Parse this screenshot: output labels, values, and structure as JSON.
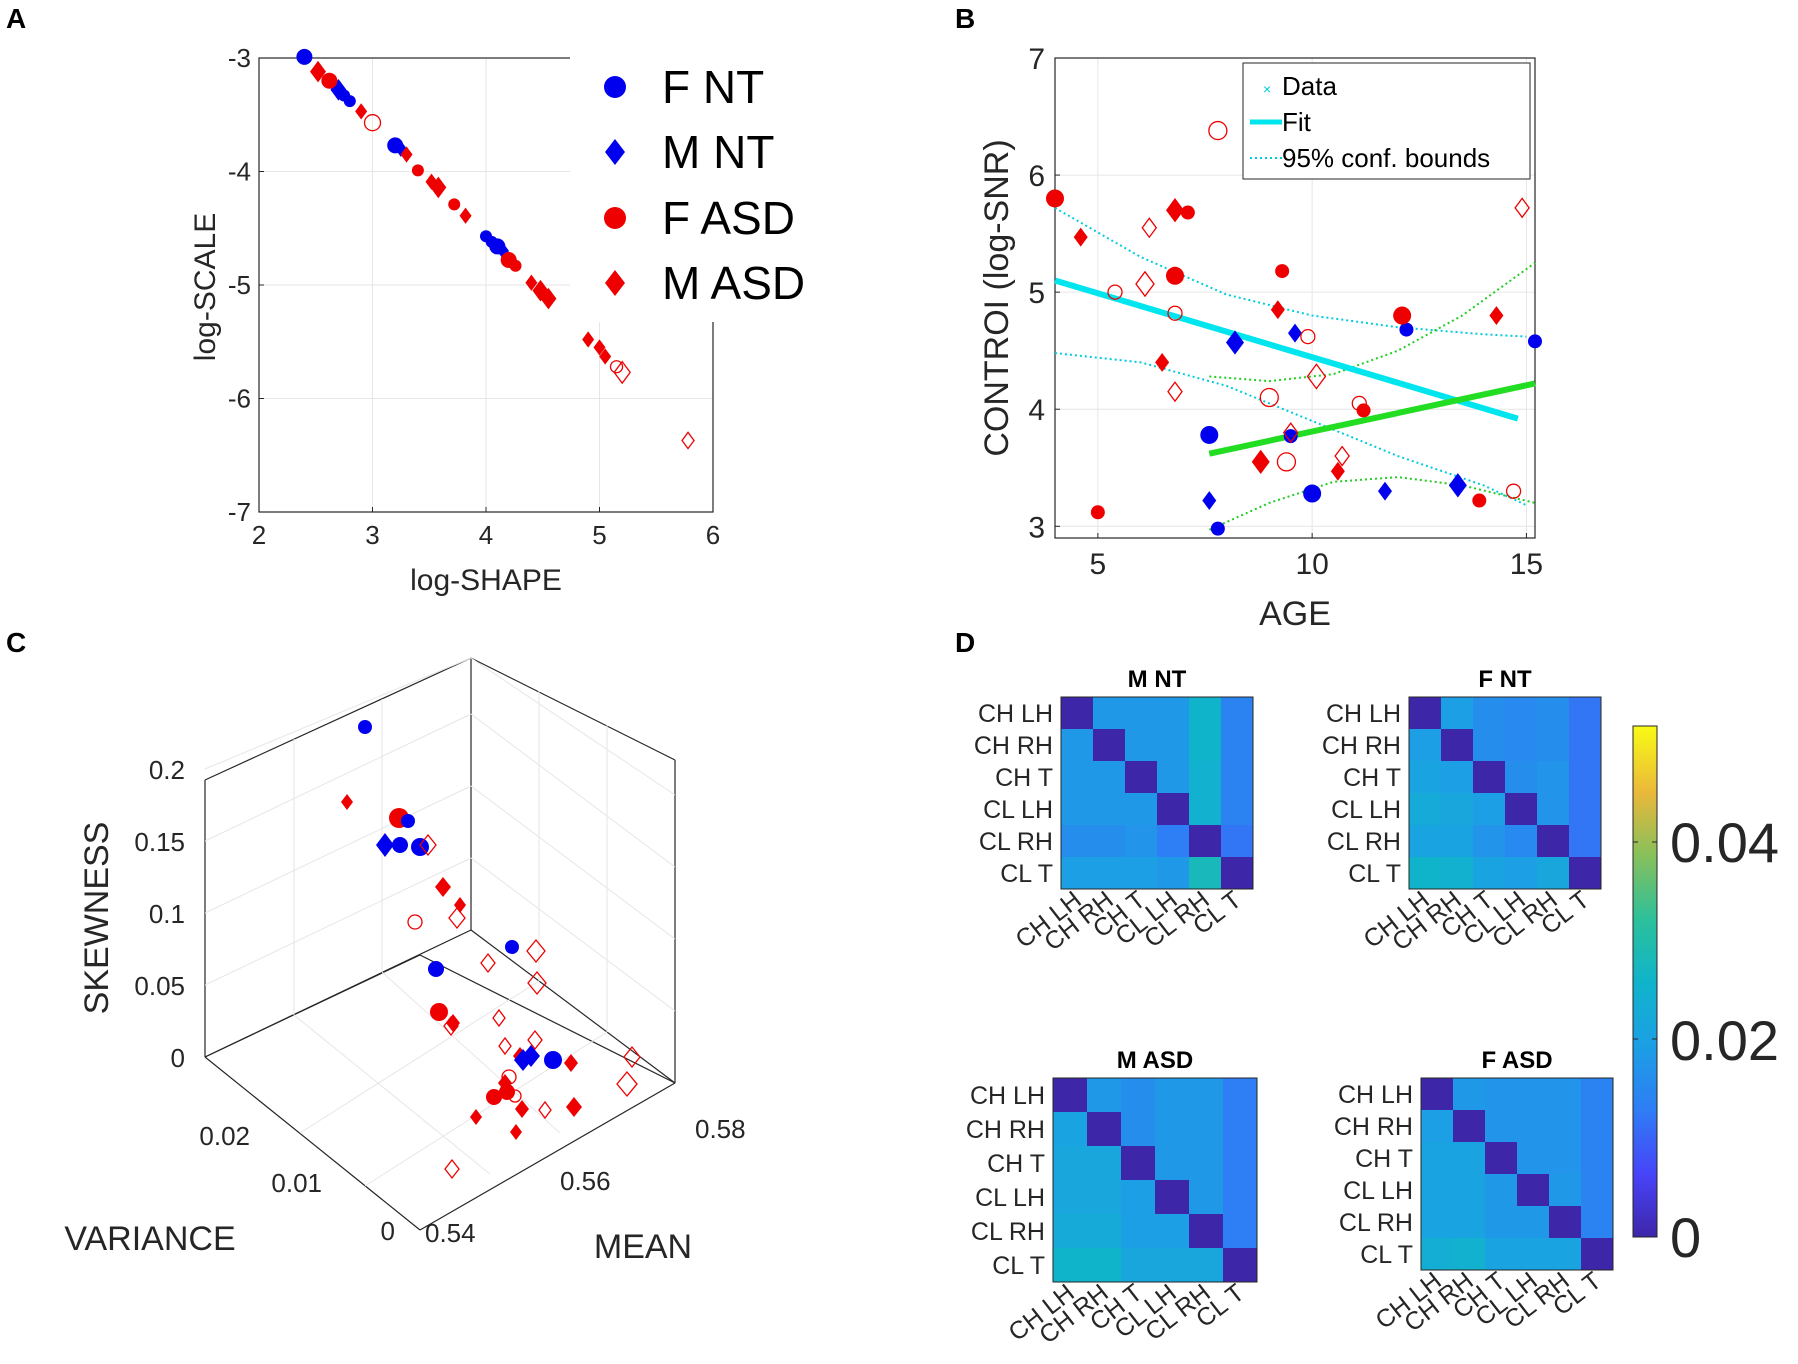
{
  "chart_data": [
    {
      "id": "A",
      "panel_label": "A",
      "type": "scatter",
      "xlabel": "log-SHAPE",
      "ylabel": "log-SCALE",
      "xlim": [
        2,
        6
      ],
      "ylim": [
        -7,
        -3
      ],
      "xticks": [
        "2",
        "3",
        "4",
        "5",
        "6"
      ],
      "yticks": [
        "-7",
        "-6",
        "-5",
        "-4",
        "-3"
      ],
      "grid": true,
      "legend_position": "top-right",
      "legend": [
        "F NT",
        "M NT",
        "F ASD",
        "M ASD"
      ],
      "colors": {
        "NT": "#0000ee",
        "ASD": "#ee0000"
      },
      "series": [
        {
          "name": "F NT",
          "points": [
            [
              2.4,
              -2.99
            ],
            [
              2.75,
              -3.33
            ],
            [
              2.8,
              -3.38
            ],
            [
              3.2,
              -3.77
            ],
            [
              4.0,
              -4.57
            ],
            [
              4.05,
              -4.62
            ],
            [
              4.1,
              -4.66
            ]
          ]
        },
        {
          "name": "M NT",
          "points": [
            [
              2.7,
              -3.28
            ],
            [
              3.25,
              -3.8
            ],
            [
              4.15,
              -4.7
            ]
          ]
        },
        {
          "name": "F ASD",
          "points": [
            [
              2.62,
              -3.2
            ],
            [
              3.4,
              -3.99
            ],
            [
              3.72,
              -4.29
            ],
            [
              4.2,
              -4.78
            ],
            [
              4.26,
              -4.83
            ],
            [
              5.15,
              -5.72
            ],
            [
              3.0,
              -3.57
            ]
          ]
        },
        {
          "name": "M ASD",
          "points": [
            [
              2.52,
              -3.12
            ],
            [
              2.9,
              -3.47
            ],
            [
              3.52,
              -4.09
            ],
            [
              3.58,
              -4.14
            ],
            [
              3.82,
              -4.39
            ],
            [
              4.4,
              -4.98
            ],
            [
              4.55,
              -5.12
            ],
            [
              4.9,
              -5.48
            ],
            [
              5.05,
              -5.63
            ],
            [
              5.2,
              -5.77
            ],
            [
              5.78,
              -6.37
            ],
            [
              3.3,
              -3.85
            ],
            [
              4.48,
              -5.05
            ],
            [
              5.0,
              -5.55
            ]
          ]
        }
      ]
    },
    {
      "id": "B",
      "panel_label": "B",
      "type": "scatter",
      "xlabel": "AGE",
      "ylabel": "CONTROI (log-SNR)",
      "xlim": [
        4,
        15.2
      ],
      "ylim": [
        2.9,
        7
      ],
      "xticks": [
        "5",
        "10",
        "15"
      ],
      "yticks": [
        "3",
        "4",
        "5",
        "6",
        "7"
      ],
      "grid": true,
      "legend_position": "top-right",
      "legend": [
        "Data",
        "Fit",
        "95% conf. bounds"
      ],
      "fit_lines": [
        {
          "name": "Fit (NT)",
          "color": "#00e5ee",
          "x": [
            4,
            14.8
          ],
          "y": [
            5.1,
            3.92
          ]
        },
        {
          "name": "Fit (ASD)",
          "color": "#22dd22",
          "x": [
            7.6,
            15.2
          ],
          "y": [
            3.62,
            4.22
          ]
        }
      ],
      "conf_bounds": [
        {
          "color": "#00ccdd",
          "x": [
            4,
            6,
            8,
            10,
            12,
            14,
            15
          ],
          "y": [
            5.72,
            5.3,
            4.98,
            4.8,
            4.7,
            4.64,
            4.62
          ]
        },
        {
          "color": "#00ccdd",
          "x": [
            4,
            6,
            8,
            10,
            12,
            14,
            15
          ],
          "y": [
            4.48,
            4.4,
            4.2,
            3.9,
            3.6,
            3.35,
            3.18
          ]
        },
        {
          "color": "#22cc22",
          "x": [
            7.6,
            9,
            10.5,
            12,
            13.5,
            15.2
          ],
          "y": [
            4.28,
            4.24,
            4.3,
            4.5,
            4.8,
            5.25
          ]
        },
        {
          "color": "#22cc22",
          "x": [
            7.6,
            9,
            10.5,
            12,
            13.5,
            15.2
          ],
          "y": [
            2.97,
            3.2,
            3.38,
            3.42,
            3.35,
            3.2
          ]
        }
      ],
      "series": [
        {
          "name": "NT",
          "color": "#0000ee",
          "points": [
            [
              7.6,
              3.78
            ],
            [
              7.6,
              3.22
            ],
            [
              7.8,
              2.98
            ],
            [
              8.2,
              4.57
            ],
            [
              9.5,
              3.77
            ],
            [
              9.6,
              4.65
            ],
            [
              10,
              3.28
            ],
            [
              11.7,
              3.3
            ],
            [
              12.2,
              4.68
            ],
            [
              13.4,
              3.35
            ],
            [
              15.2,
              4.58
            ]
          ]
        },
        {
          "name": "ASD",
          "color": "#ee0000",
          "points": [
            [
              4,
              5.8
            ],
            [
              4.6,
              5.47
            ],
            [
              5,
              3.12
            ],
            [
              6.8,
              5.7
            ],
            [
              7.1,
              5.68
            ],
            [
              6.5,
              4.4
            ],
            [
              6.8,
              5.14
            ],
            [
              9.2,
              4.85
            ],
            [
              9.3,
              5.18
            ],
            [
              8.8,
              3.55
            ],
            [
              11.2,
              3.99
            ],
            [
              10.6,
              3.47
            ],
            [
              12.1,
              4.8
            ],
            [
              14.3,
              4.8
            ],
            [
              13.9,
              3.22
            ]
          ]
        },
        {
          "name": "ASD (open)",
          "color": "#ee0000",
          "points": [
            [
              7.8,
              6.38
            ],
            [
              6.2,
              5.55
            ],
            [
              5.4,
              5.0
            ],
            [
              6.1,
              5.07
            ],
            [
              6.8,
              4.82
            ],
            [
              6.8,
              4.15
            ],
            [
              9.4,
              3.55
            ],
            [
              9.5,
              3.8
            ],
            [
              9.9,
              4.62
            ],
            [
              10.1,
              4.28
            ],
            [
              11.1,
              4.05
            ],
            [
              10.7,
              3.6
            ],
            [
              9,
              4.1
            ],
            [
              14.9,
              5.72
            ],
            [
              14.7,
              3.3
            ]
          ]
        }
      ]
    },
    {
      "id": "C",
      "panel_label": "C",
      "type": "scatter",
      "xlabel": "MEAN",
      "ylabel": "SKEWNESS",
      "zlabel": "VARIANCE",
      "xticks": [
        "0.54",
        "0.56",
        "0.58"
      ],
      "yticks": [
        "0",
        "0.05",
        "0.1",
        "0.15",
        "0.2"
      ],
      "zticks": [
        "0",
        "0.01",
        "0.02"
      ],
      "ylim": [
        0,
        0.2
      ],
      "grid": true
    },
    {
      "id": "D",
      "panel_label": "D",
      "type": "heatmap",
      "row_labels": [
        "CH LH",
        "CH RH",
        "CH T",
        "CL LH",
        "CL RH",
        "CL T"
      ],
      "col_labels": [
        "CH LH",
        "CH RH",
        "CH T",
        "CL LH",
        "CL RH",
        "CL T"
      ],
      "colorbar_ticks": [
        "0.04",
        "0.02",
        "0"
      ],
      "clim": [
        0,
        0.048
      ],
      "matrices": [
        {
          "title": "M NT",
          "values": [
            [
              0,
              0.017,
              0.017,
              0.017,
              0.024,
              0.013
            ],
            [
              0.017,
              0,
              0.017,
              0.017,
              0.024,
              0.013
            ],
            [
              0.017,
              0.017,
              0,
              0.017,
              0.023,
              0.013
            ],
            [
              0.017,
              0.017,
              0.017,
              0,
              0.023,
              0.013
            ],
            [
              0.015,
              0.015,
              0.016,
              0.012,
              0,
              0.011
            ],
            [
              0.018,
              0.018,
              0.018,
              0.017,
              0.026,
              0
            ]
          ]
        },
        {
          "title": "F NT",
          "values": [
            [
              0,
              0.018,
              0.015,
              0.014,
              0.015,
              0.011
            ],
            [
              0.018,
              0,
              0.015,
              0.014,
              0.015,
              0.011
            ],
            [
              0.019,
              0.018,
              0,
              0.015,
              0.016,
              0.011
            ],
            [
              0.021,
              0.02,
              0.018,
              0,
              0.016,
              0.011
            ],
            [
              0.019,
              0.019,
              0.016,
              0.014,
              0,
              0.011
            ],
            [
              0.024,
              0.023,
              0.019,
              0.018,
              0.02,
              0
            ]
          ]
        },
        {
          "title": "M ASD",
          "values": [
            [
              0,
              0.017,
              0.015,
              0.017,
              0.017,
              0.012
            ],
            [
              0.019,
              0,
              0.015,
              0.017,
              0.017,
              0.012
            ],
            [
              0.02,
              0.02,
              0,
              0.017,
              0.017,
              0.012
            ],
            [
              0.02,
              0.02,
              0.018,
              0,
              0.017,
              0.012
            ],
            [
              0.021,
              0.021,
              0.018,
              0.018,
              0,
              0.012
            ],
            [
              0.024,
              0.024,
              0.02,
              0.02,
              0.02,
              0
            ]
          ]
        },
        {
          "title": "F ASD",
          "values": [
            [
              0,
              0.017,
              0.016,
              0.016,
              0.016,
              0.013
            ],
            [
              0.018,
              0,
              0.016,
              0.016,
              0.016,
              0.013
            ],
            [
              0.019,
              0.019,
              0,
              0.016,
              0.016,
              0.013
            ],
            [
              0.019,
              0.019,
              0.017,
              0,
              0.017,
              0.013
            ],
            [
              0.019,
              0.019,
              0.017,
              0.017,
              0,
              0.013
            ],
            [
              0.022,
              0.023,
              0.019,
              0.019,
              0.019,
              0
            ]
          ]
        }
      ]
    }
  ]
}
